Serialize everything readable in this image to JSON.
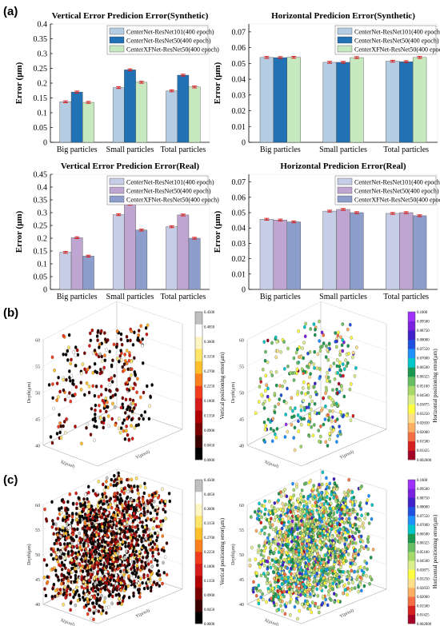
{
  "panel_labels": {
    "a": "(a)",
    "b": "(b)",
    "c": "(c)"
  },
  "colors": {
    "light_blue": "#b4cde2",
    "dark_blue": "#2171b5",
    "light_green": "#c7e9c0",
    "lavender_light": "#c6cde6",
    "purple": "#bea6d0",
    "slate_blue": "#8d9ecd",
    "error_bar": "#e31a1c"
  },
  "chart_data": [
    {
      "type": "bar",
      "title": "Vertical Error Predicion Error(Synthetic)",
      "ylabel": "Error (μm)",
      "ylim": [
        0,
        0.4
      ],
      "yticks": [
        "0",
        "0.05",
        "0.1",
        "0.15",
        "0.2",
        "0.25",
        "0.3",
        "0.35",
        "0.4"
      ],
      "categories": [
        "Big particles",
        "Small particles",
        "Total particles"
      ],
      "legend_position": "top-right",
      "series": [
        {
          "name": "CenterNet-ResNet101(400 epoch)",
          "color": "#b4cde2",
          "values": [
            0.137,
            0.185,
            0.174
          ]
        },
        {
          "name": "CenterNet-ResNet50(400 epoch)",
          "color": "#2171b5",
          "values": [
            0.17,
            0.245,
            0.227
          ]
        },
        {
          "name": "CenterXFNet-ResNet50(400 epoch)",
          "color": "#c7e9c0",
          "values": [
            0.135,
            0.203,
            0.187
          ]
        }
      ]
    },
    {
      "type": "bar",
      "title": "Horizontal Predicion Error(Synthetic)",
      "ylabel": "Error (μm)",
      "ylim": [
        0,
        0.075
      ],
      "yticks": [
        "0",
        "0.01",
        "0.02",
        "0.03",
        "0.04",
        "0.05",
        "0.06",
        "0.07"
      ],
      "categories": [
        "Big particles",
        "Small particles",
        "Total particles"
      ],
      "legend_position": "top-right",
      "series": [
        {
          "name": "CenterNet-ResNet101(400 epoch)",
          "color": "#b4cde2",
          "values": [
            0.0538,
            0.0507,
            0.0514
          ]
        },
        {
          "name": "CenterNet-ResNet50(400 epoch)",
          "color": "#2171b5",
          "values": [
            0.0537,
            0.0507,
            0.0511
          ]
        },
        {
          "name": "CenterXFNet-ResNet50(400 epoch)",
          "color": "#c7e9c0",
          "values": [
            0.0539,
            0.0537,
            0.0538
          ]
        }
      ]
    },
    {
      "type": "bar",
      "title": "Vertical Error Predicion Error(Real)",
      "ylabel": "Error (μm)",
      "ylim": [
        0,
        0.45
      ],
      "yticks": [
        "0",
        "0.05",
        "0.1",
        "0.15",
        "0.2",
        "0.25",
        "0.3",
        "0.35",
        "0.4",
        "0.45"
      ],
      "categories": [
        "Big particles",
        "Small particles",
        "Total particles"
      ],
      "legend_position": "top-right",
      "series": [
        {
          "name": "CenterNet-ResNet101(400 epoch)",
          "color": "#c6cde6",
          "values": [
            0.145,
            0.292,
            0.245
          ]
        },
        {
          "name": "CenterNet-ResNet50(400 epoch)",
          "color": "#bea6d0",
          "values": [
            0.202,
            0.333,
            0.291
          ]
        },
        {
          "name": "CenterXFNet-ResNet50(400 epoch)",
          "color": "#8d9ecd",
          "values": [
            0.13,
            0.232,
            0.2
          ]
        }
      ]
    },
    {
      "type": "bar",
      "title": "Horizontal Predicion Error(Real)",
      "ylabel": "Error (μm)",
      "ylim": [
        0,
        0.075
      ],
      "yticks": [
        "0",
        "0.01",
        "0.02",
        "0.03",
        "0.04",
        "0.05",
        "0.06",
        "0.07"
      ],
      "categories": [
        "Big particles",
        "Small particles",
        "Total particles"
      ],
      "legend_position": "top-right",
      "series": [
        {
          "name": "CenterNet-ResNet101(400 epoch)",
          "color": "#c6cde6",
          "values": [
            0.0457,
            0.051,
            0.0495
          ]
        },
        {
          "name": "CenterNet-ResNet50(400 epoch)",
          "color": "#bea6d0",
          "values": [
            0.0452,
            0.0521,
            0.05
          ]
        },
        {
          "name": "CenterXFNet-ResNet50(400 epoch)",
          "color": "#8d9ecd",
          "values": [
            0.044,
            0.05,
            0.048
          ]
        }
      ]
    },
    {
      "type": "scatter",
      "zlabel": "Depth(μm)",
      "zticks": [
        "40",
        "45",
        "50",
        "55",
        "60"
      ],
      "xlabel": "X(pixel)",
      "ylabel": "Y(pixel)",
      "colorbar_label": "Vertical positioning error(μm)",
      "colorbar_ticks": [
        "0.4500",
        "0.4050",
        "0.3600",
        "0.3150",
        "0.2700",
        "0.2250",
        "0.1800",
        "0.1350",
        "0.0900",
        "0.0450",
        "0.0000"
      ]
    },
    {
      "type": "scatter",
      "zlabel": "Depth(μm)",
      "zticks": [
        "40",
        "45",
        "50",
        "55",
        "60"
      ],
      "xlabel": "X(pixel)",
      "ylabel": "Y(pixel)",
      "colorbar_label": "Horizontal positioning error(μm)",
      "colorbar_ticks": [
        "0.1000",
        "0.09500",
        "0.08750",
        "0.08000",
        "0.07550",
        "0.07000",
        "0.06500",
        "0.06325",
        "0.05100",
        "0.04500",
        "0.03875",
        "0.03250",
        "0.02650",
        "0.02000",
        "0.01500",
        "0.01425",
        "0.002000"
      ]
    },
    {
      "type": "scatter",
      "zlabel": "Depth(μm)",
      "zticks": [
        "40",
        "45",
        "50",
        "55",
        "60"
      ],
      "xlabel": "X(pixel)",
      "ylabel": "Y(pixel)",
      "colorbar_label": "Vertical positioning error(μm)",
      "colorbar_ticks": [
        "0.4500",
        "0.4050",
        "0.3600",
        "0.3150",
        "0.2700",
        "0.2250",
        "0.1800",
        "0.1350",
        "0.0900",
        "0.0450",
        "0.0000"
      ]
    },
    {
      "type": "scatter",
      "zlabel": "Depth(μm)",
      "zticks": [
        "40",
        "45",
        "50",
        "55",
        "60"
      ],
      "xlabel": "X(pixel)",
      "ylabel": "Y(pixel)",
      "colorbar_label": "Horizontal positioning error(μm)",
      "colorbar_ticks": [
        "0.1000",
        "0.09500",
        "0.08750",
        "0.08000",
        "0.07550",
        "0.07000",
        "0.06500",
        "0.06325",
        "0.05100",
        "0.04500",
        "0.03875",
        "0.03250",
        "0.02650",
        "0.02000",
        "0.01500",
        "0.01425",
        "0.002000"
      ]
    }
  ]
}
